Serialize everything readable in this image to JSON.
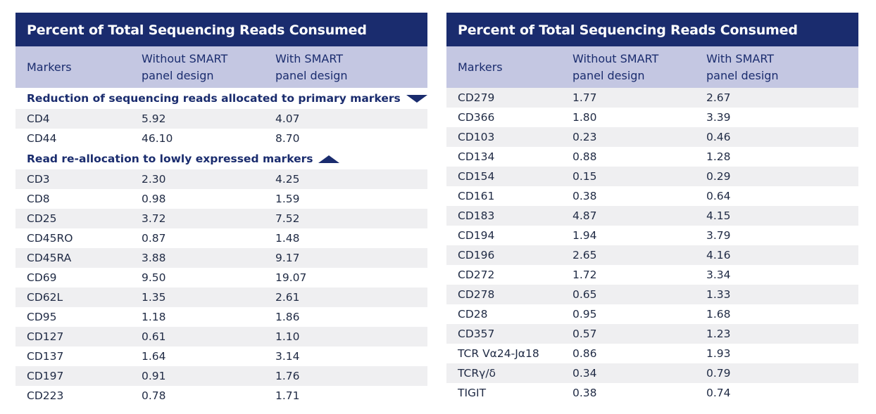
{
  "left": {
    "title": "Percent of Total Sequencing Reads Consumed",
    "headers": [
      "Markers",
      "Without SMART\npanel design",
      "With SMART\npanel design"
    ],
    "section1": "Reduction of sequencing reads allocated to primary markers",
    "rows1": [
      [
        "CD4",
        "5.92",
        "4.07"
      ],
      [
        "CD44",
        "46.10",
        "8.70"
      ]
    ],
    "section2": "Read re-allocation to lowly expressed markers",
    "rows2": [
      [
        "CD3",
        "2.30",
        "4.25"
      ],
      [
        "CD8",
        "0.98",
        "1.59"
      ],
      [
        "CD25",
        "3.72",
        "7.52"
      ],
      [
        "CD45RO",
        "0.87",
        "1.48"
      ],
      [
        "CD45RA",
        "3.88",
        "9.17"
      ],
      [
        "CD69",
        "9.50",
        "19.07"
      ],
      [
        "CD62L",
        "1.35",
        "2.61"
      ],
      [
        "CD95",
        "1.18",
        "1.86"
      ],
      [
        "CD127",
        "0.61",
        "1.10"
      ],
      [
        "CD137",
        "1.64",
        "3.14"
      ],
      [
        "CD197",
        "0.91",
        "1.76"
      ],
      [
        "CD223",
        "0.78",
        "1.71"
      ]
    ]
  },
  "right": {
    "title": "Percent of Total Sequencing Reads Consumed",
    "headers": [
      "Markers",
      "Without SMART\npanel design",
      "With SMART\npanel design"
    ],
    "rows": [
      [
        "CD279",
        "1.77",
        "2.67"
      ],
      [
        "CD366",
        "1.80",
        "3.39"
      ],
      [
        "CD103",
        "0.23",
        "0.46"
      ],
      [
        "CD134",
        "0.88",
        "1.28"
      ],
      [
        "CD154",
        "0.15",
        "0.29"
      ],
      [
        "CD161",
        "0.38",
        "0.64"
      ],
      [
        "CD183",
        "4.87",
        "4.15"
      ],
      [
        "CD194",
        "1.94",
        "3.79"
      ],
      [
        "CD196",
        "2.65",
        "4.16"
      ],
      [
        "CD272",
        "1.72",
        "3.34"
      ],
      [
        "CD278",
        "0.65",
        "1.33"
      ],
      [
        "CD28",
        "0.95",
        "1.68"
      ],
      [
        "CD357",
        "0.57",
        "1.23"
      ],
      [
        "TCR Vα24-Jα18",
        "0.86",
        "1.93"
      ],
      [
        "TCRγ/δ",
        "0.34",
        "0.79"
      ],
      [
        "TIGIT",
        "0.38",
        "0.74"
      ]
    ]
  },
  "colors": {
    "title_bg": "#1a2c6e",
    "header_bg": "#c4c7e2",
    "stripe_bg": "#efeff1"
  }
}
